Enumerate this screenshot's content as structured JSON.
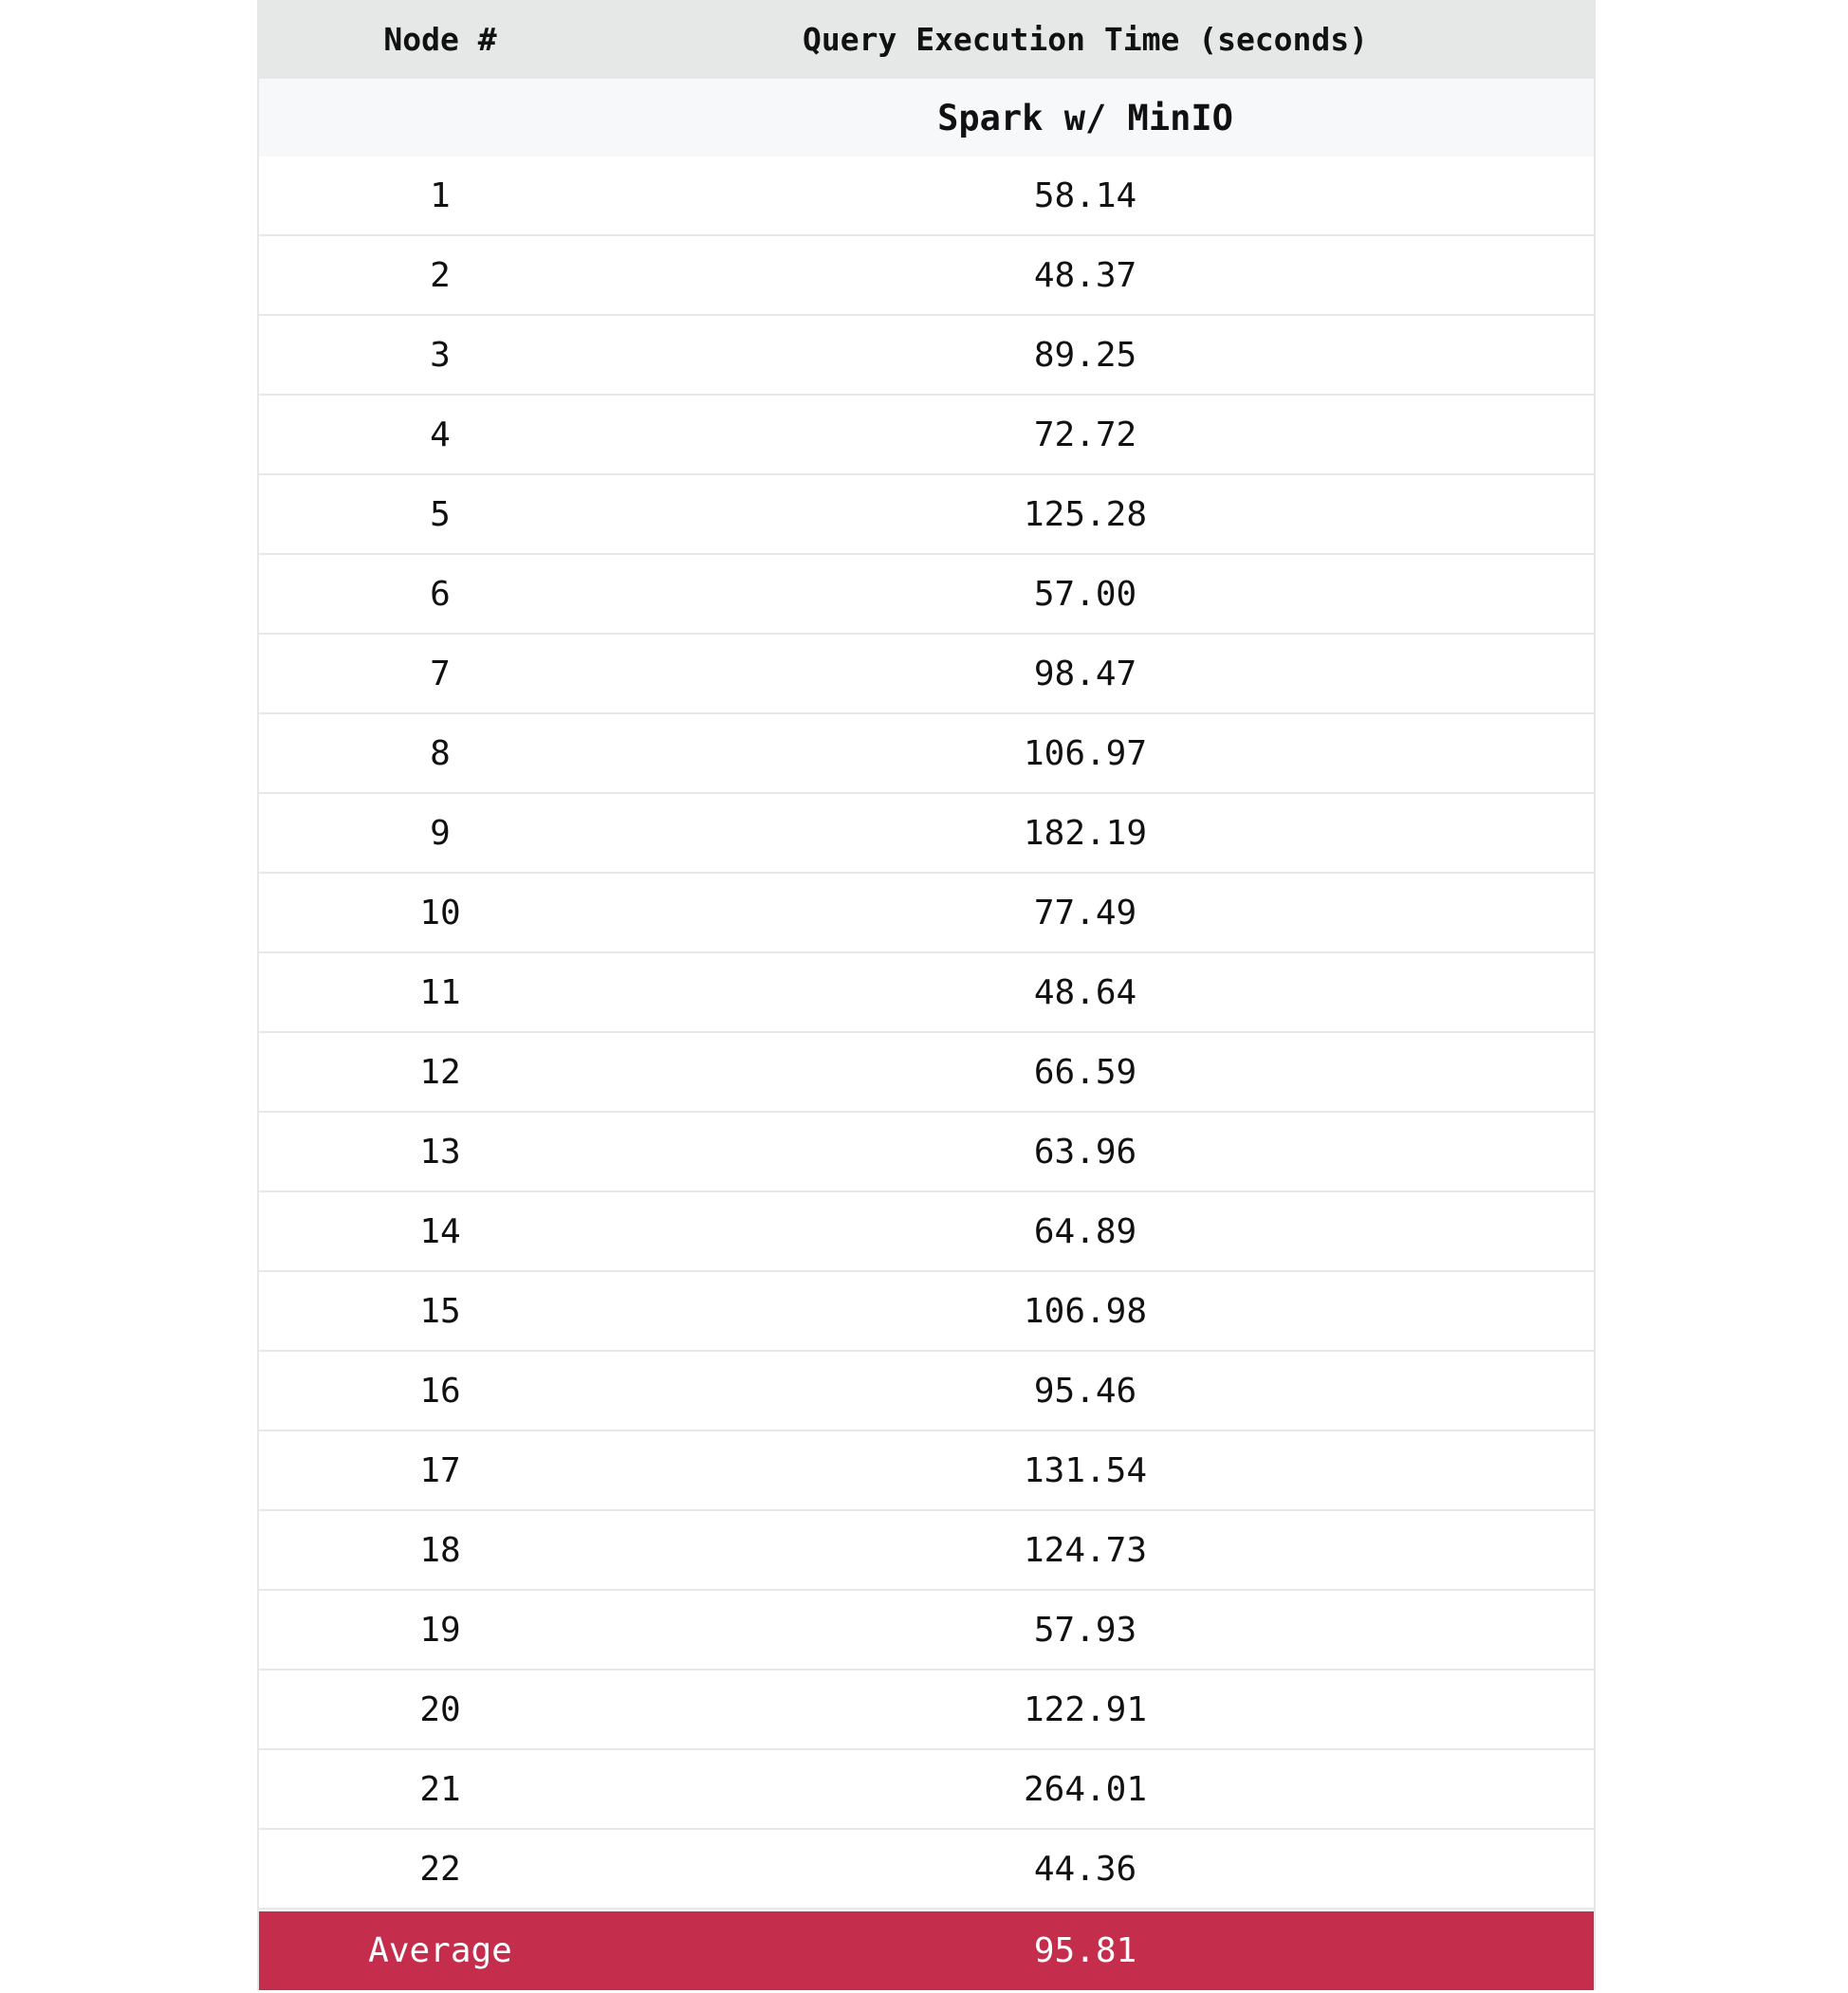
{
  "header": {
    "node_label": "Node #",
    "time_label": "Query Execution Time (seconds)"
  },
  "subheader": {
    "node_label": "",
    "time_label": "Spark w/ MinIO"
  },
  "rows": [
    {
      "node": "1",
      "time": "58.14"
    },
    {
      "node": "2",
      "time": "48.37"
    },
    {
      "node": "3",
      "time": "89.25"
    },
    {
      "node": "4",
      "time": "72.72"
    },
    {
      "node": "5",
      "time": "125.28"
    },
    {
      "node": "6",
      "time": "57.00"
    },
    {
      "node": "7",
      "time": "98.47"
    },
    {
      "node": "8",
      "time": "106.97"
    },
    {
      "node": "9",
      "time": "182.19"
    },
    {
      "node": "10",
      "time": "77.49"
    },
    {
      "node": "11",
      "time": "48.64"
    },
    {
      "node": "12",
      "time": "66.59"
    },
    {
      "node": "13",
      "time": "63.96"
    },
    {
      "node": "14",
      "time": "64.89"
    },
    {
      "node": "15",
      "time": "106.98"
    },
    {
      "node": "16",
      "time": "95.46"
    },
    {
      "node": "17",
      "time": "131.54"
    },
    {
      "node": "18",
      "time": "124.73"
    },
    {
      "node": "19",
      "time": "57.93"
    },
    {
      "node": "20",
      "time": "122.91"
    },
    {
      "node": "21",
      "time": "264.01"
    },
    {
      "node": "22",
      "time": "44.36"
    }
  ],
  "average": {
    "label": "Average",
    "time": "95.81"
  },
  "colors": {
    "header_bg": "#e6e8e7",
    "subheader_bg": "#f7f8fa",
    "average_bg": "#c42d4b"
  }
}
